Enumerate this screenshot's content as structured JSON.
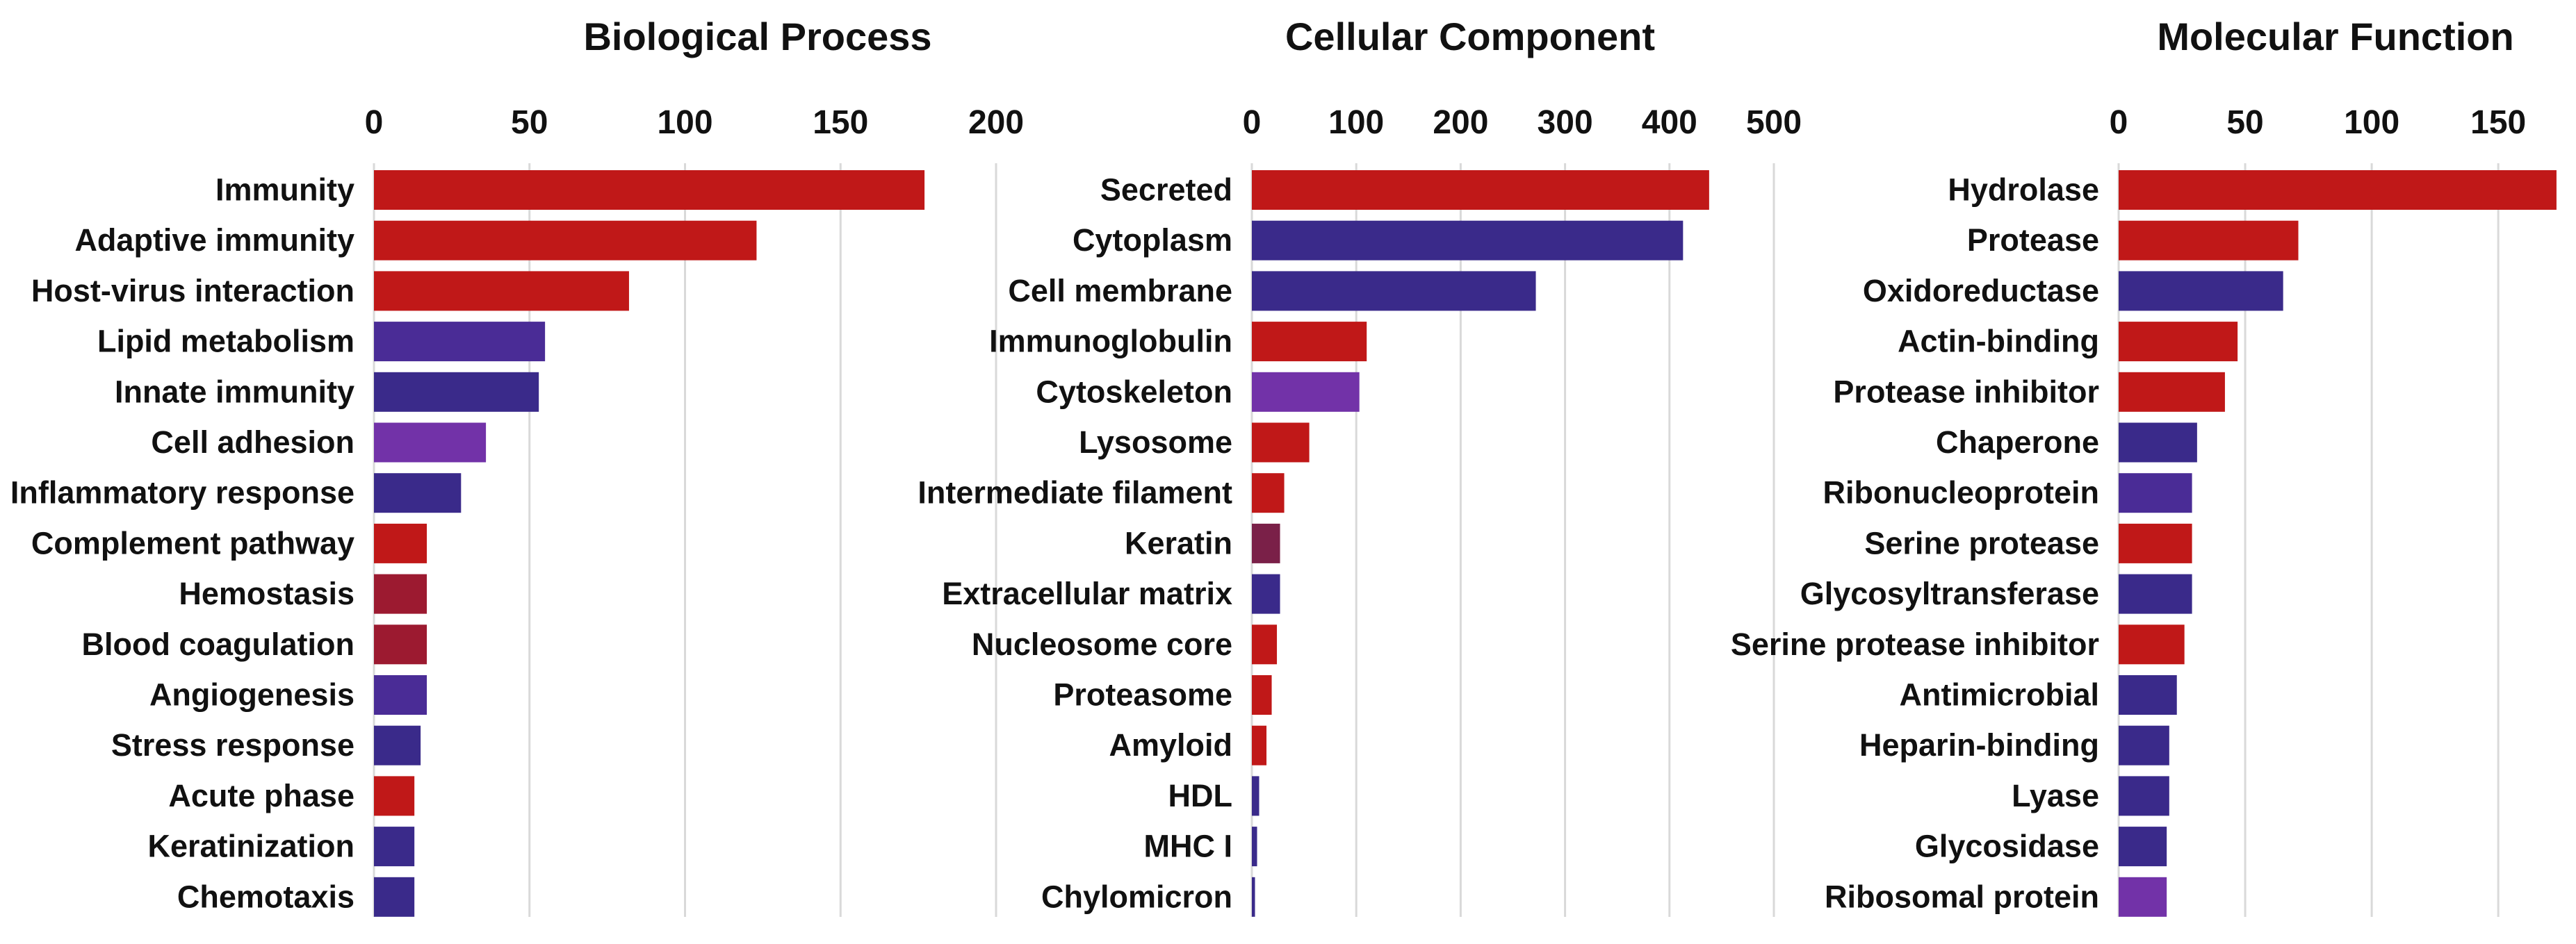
{
  "colors": {
    "red": "#c01818",
    "dark_red": "#9c1a30",
    "maroon": "#7a2048",
    "indigo": "#3a2a8a",
    "purple_blue": "#4a2c96",
    "violet": "#7232a8",
    "grid": "#d9d9d9",
    "text": "#111111"
  },
  "chart_data": [
    {
      "type": "bar",
      "orientation": "horizontal",
      "title": "Biological Process",
      "xlim": [
        0,
        200
      ],
      "ticks": [
        0,
        50,
        100,
        150,
        200
      ],
      "grid": true,
      "categories": [
        "Immunity",
        "Adaptive immunity",
        "Host-virus interaction",
        "Lipid metabolism",
        "Innate immunity",
        "Cell adhesion",
        "Inflammatory response",
        "Complement pathway",
        "Hemostasis",
        "Blood coagulation",
        "Angiogenesis",
        "Stress response",
        "Acute phase",
        "Keratinization",
        "Chemotaxis"
      ],
      "values": [
        177,
        123,
        82,
        55,
        53,
        36,
        28,
        17,
        17,
        17,
        17,
        15,
        13,
        13,
        13
      ],
      "bar_colors": [
        "red",
        "red",
        "red",
        "purple_blue",
        "indigo",
        "violet",
        "indigo",
        "red",
        "dark_red",
        "dark_red",
        "purple_blue",
        "indigo",
        "red",
        "indigo",
        "indigo"
      ]
    },
    {
      "type": "bar",
      "orientation": "horizontal",
      "title": "Cellular Component",
      "xlim": [
        0,
        500
      ],
      "ticks": [
        0,
        100,
        200,
        300,
        400,
        500
      ],
      "grid": true,
      "categories": [
        "Secreted",
        "Cytoplasm",
        "Cell membrane",
        "Immunoglobulin",
        "Cytoskeleton",
        "Lysosome",
        "Intermediate filament",
        "Keratin",
        "Extracellular matrix",
        "Nucleosome core",
        "Proteasome",
        "Amyloid",
        "HDL",
        "MHC I",
        "Chylomicron"
      ],
      "values": [
        438,
        413,
        272,
        110,
        103,
        55,
        31,
        27,
        27,
        24,
        19,
        14,
        7,
        5,
        3
      ],
      "bar_colors": [
        "red",
        "indigo",
        "indigo",
        "red",
        "violet",
        "red",
        "red",
        "maroon",
        "indigo",
        "red",
        "red",
        "red",
        "indigo",
        "indigo",
        "indigo"
      ]
    },
    {
      "type": "bar",
      "orientation": "horizontal",
      "title": "Molecular Function",
      "xlim": [
        0,
        170
      ],
      "ticks": [
        0,
        50,
        100,
        150
      ],
      "grid": true,
      "categories": [
        "Hydrolase",
        "Protease",
        "Oxidoreductase",
        "Actin-binding",
        "Protease inhibitor",
        "Chaperone",
        "Ribonucleoprotein",
        "Serine protease",
        "Glycosyltransferase",
        "Serine protease inhibitor",
        "Antimicrobial",
        "Heparin-binding",
        "Lyase",
        "Glycosidase",
        "Ribosomal protein"
      ],
      "values": [
        173,
        71,
        65,
        47,
        42,
        31,
        29,
        29,
        29,
        26,
        23,
        20,
        20,
        19,
        19
      ],
      "bar_colors": [
        "red",
        "red",
        "indigo",
        "red",
        "red",
        "indigo",
        "purple_blue",
        "red",
        "indigo",
        "red",
        "indigo",
        "indigo",
        "indigo",
        "indigo",
        "violet"
      ]
    }
  ]
}
